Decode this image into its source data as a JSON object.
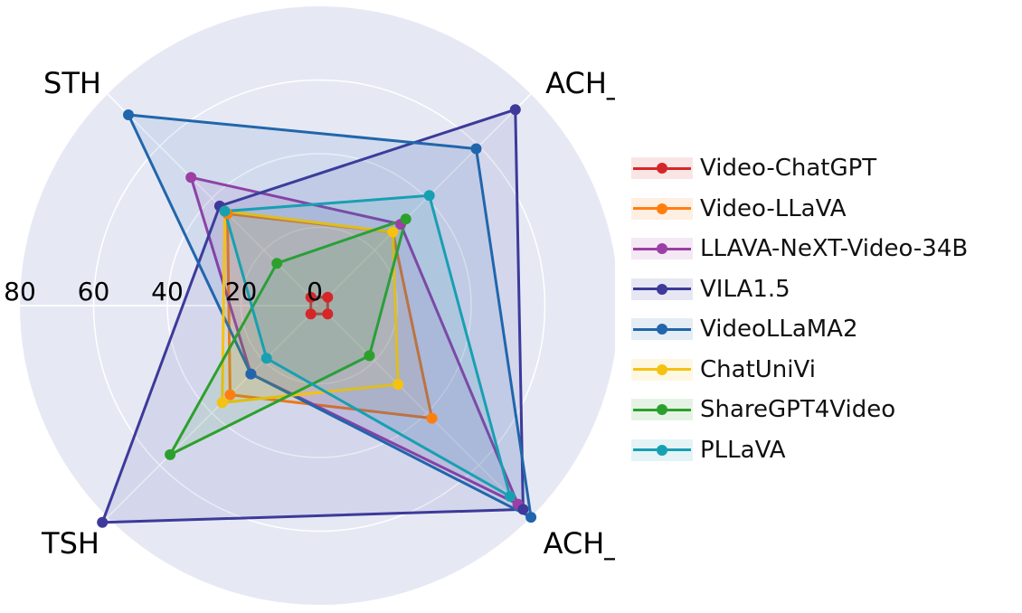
{
  "chart_data": {
    "type": "radar",
    "axes": [
      "STH",
      "ACH_BinaryQA",
      "ACH_MCQ",
      "TSH"
    ],
    "radial_ticks": [
      "0",
      "20",
      "40",
      "60",
      "80"
    ],
    "radial_range": [
      0,
      80
    ],
    "grid": true,
    "legend_position": "right",
    "series": [
      {
        "name": "Video-ChatGPT",
        "color": "#d62728",
        "values": [
          2,
          2,
          2,
          2
        ]
      },
      {
        "name": "Video-LLaVA",
        "color": "#ff7f0e",
        "values": [
          34,
          27,
          42,
          33
        ]
      },
      {
        "name": "LLAVA-NeXT-Video-34B",
        "color": "#9b3fa5",
        "values": [
          48,
          30,
          75,
          25
        ]
      },
      {
        "name": "VILA1.5",
        "color": "#3d3a9a",
        "values": [
          37,
          74,
          77,
          82
        ]
      },
      {
        "name": "VideoLLaMA2",
        "color": "#2166ac",
        "values": [
          72,
          59,
          80,
          25
        ]
      },
      {
        "name": "ChatUniVi",
        "color": "#f5c211",
        "values": [
          35,
          27,
          29,
          36
        ]
      },
      {
        "name": "ShareGPT4Video",
        "color": "#2ca02c",
        "values": [
          15,
          32,
          18,
          56
        ]
      },
      {
        "name": "PLLaVA",
        "color": "#17a0b2",
        "values": [
          35,
          41,
          72,
          19
        ]
      }
    ]
  }
}
